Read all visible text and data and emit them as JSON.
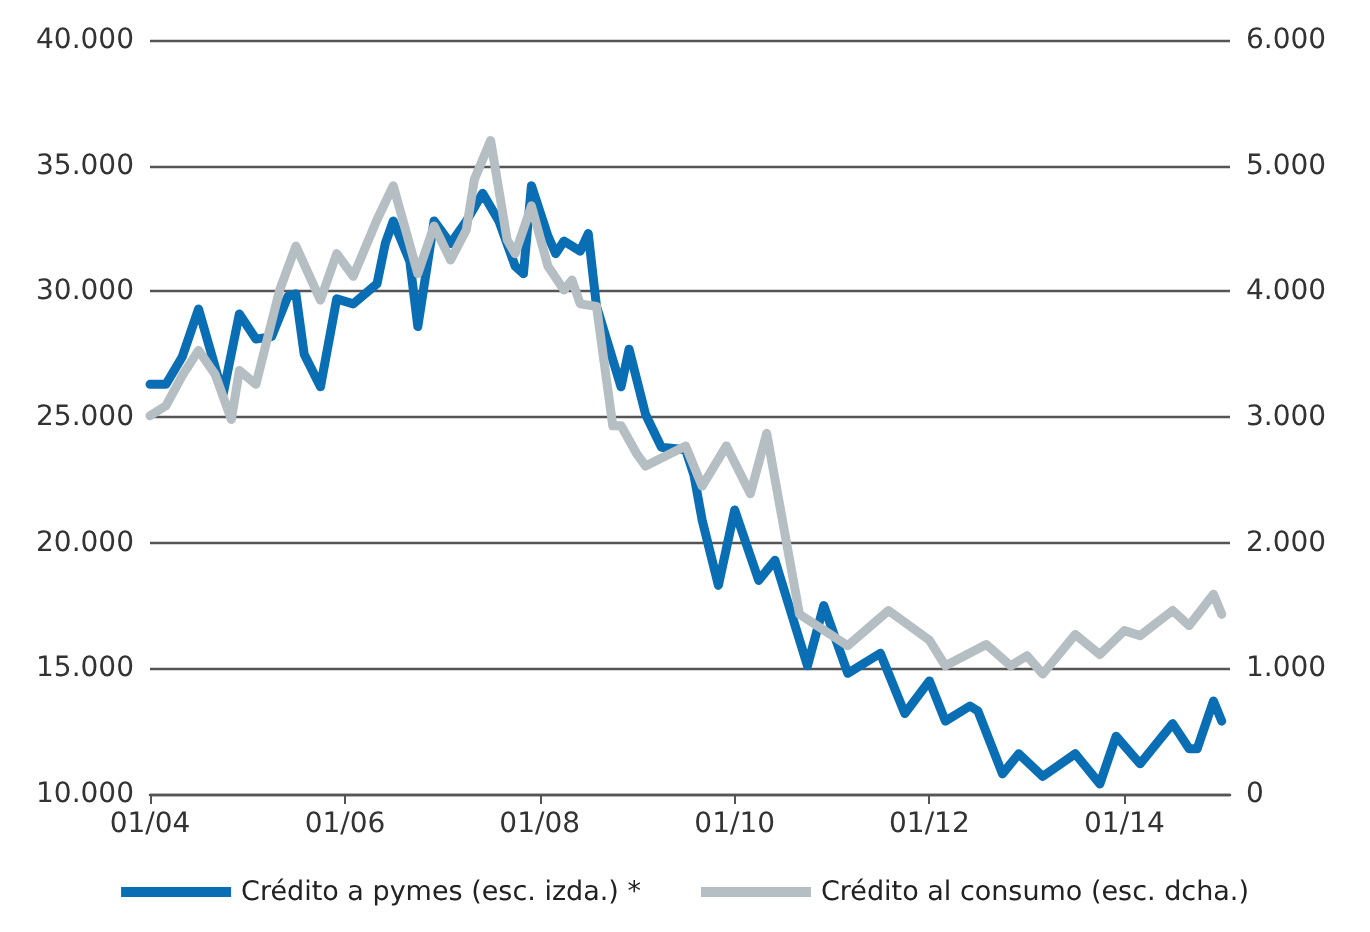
{
  "chart_data": {
    "type": "line",
    "xlim": [
      "2004-01",
      "2015-02"
    ],
    "xticks": [
      {
        "value": "2004-01",
        "label": "01/04"
      },
      {
        "value": "2006-01",
        "label": "01/06"
      },
      {
        "value": "2008-01",
        "label": "01/08"
      },
      {
        "value": "2010-01",
        "label": "01/10"
      },
      {
        "value": "2012-01",
        "label": "01/12"
      },
      {
        "value": "2014-01",
        "label": "01/14"
      }
    ],
    "ylim": [
      10000,
      40000
    ],
    "yticks": [
      {
        "value": 10000,
        "label": "10.000"
      },
      {
        "value": 15000,
        "label": "15.000"
      },
      {
        "value": 20000,
        "label": "20.000"
      },
      {
        "value": 25000,
        "label": "25.000"
      },
      {
        "value": 30000,
        "label": "30.000"
      },
      {
        "value": 35000,
        "label": "35.000"
      },
      {
        "value": 40000,
        "label": "40.000"
      }
    ],
    "y2lim": [
      0,
      6000
    ],
    "y2ticks": [
      0,
      {
        "value": 1000,
        "label": "1.000"
      },
      {
        "value": 2000,
        "label": "2.000"
      },
      {
        "value": 3000,
        "label": "3.000"
      },
      {
        "value": 4000,
        "label": "4.000"
      },
      {
        "value": 5000,
        "label": "5.000"
      },
      {
        "value": 6000,
        "label": "6.000"
      }
    ],
    "grid": "y",
    "legend": "bottom",
    "marker": "none",
    "line_style": "solid",
    "series": [
      {
        "name": "Crédito a pymes (esc. izda.) *",
        "color": "#0a6eb4",
        "x": [
          "2004-01",
          "2004-03",
          "2004-05",
          "2004-07",
          "2004-09",
          "2004-10",
          "2004-12",
          "2005-02",
          "2005-04",
          "2005-06",
          "2005-07",
          "2005-08",
          "2005-10",
          "2005-12",
          "2006-02",
          "2006-05",
          "2006-06",
          "2006-07",
          "2006-09",
          "2006-10",
          "2006-12",
          "2007-02",
          "2007-04",
          "2007-06",
          "2007-08",
          "2007-10",
          "2007-11",
          "2007-12",
          "2008-02",
          "2008-03",
          "2008-04",
          "2008-06",
          "2008-07",
          "2008-08",
          "2008-11",
          "2008-12",
          "2009-02",
          "2009-04",
          "2009-07",
          "2009-08",
          "2009-09",
          "2009-11",
          "2010-01",
          "2010-04",
          "2010-06",
          "2010-10",
          "2010-12",
          "2011-03",
          "2011-07",
          "2011-10",
          "2012-01",
          "2012-03",
          "2012-06",
          "2012-07",
          "2012-10",
          "2012-12",
          "2013-03",
          "2013-07",
          "2013-10",
          "2013-12",
          "2014-03",
          "2014-07",
          "2014-09",
          "2014-10",
          "2014-12",
          "2015-01"
        ],
        "values": [
          26300,
          26300,
          27400,
          29300,
          27000,
          25900,
          29100,
          28100,
          28200,
          29800,
          29900,
          27500,
          26200,
          29700,
          29500,
          30300,
          31900,
          32800,
          31200,
          28600,
          32800,
          31900,
          32800,
          33900,
          32800,
          31000,
          30700,
          34200,
          32200,
          31500,
          32000,
          31600,
          32300,
          29400,
          26200,
          27700,
          25100,
          23800,
          23700,
          22700,
          20900,
          18300,
          21300,
          18500,
          19300,
          15100,
          17500,
          14800,
          15600,
          13200,
          14500,
          12900,
          13500,
          13300,
          10800,
          11600,
          10700,
          11600,
          10400,
          12300,
          11200,
          12800,
          11800,
          11800,
          13700,
          12900
        ]
      },
      {
        "name": "Crédito al consumo (esc. dcha.)",
        "color": "#b4bec3",
        "axis": "y2",
        "x": [
          "2004-01",
          "2004-03",
          "2004-05",
          "2004-07",
          "2004-09",
          "2004-11",
          "2004-12",
          "2005-02",
          "2005-05",
          "2005-07",
          "2005-10",
          "2005-12",
          "2006-02",
          "2006-05",
          "2006-07",
          "2006-10",
          "2006-12",
          "2007-02",
          "2007-04",
          "2007-05",
          "2007-07",
          "2007-09",
          "2007-10",
          "2007-12",
          "2008-02",
          "2008-04",
          "2008-05",
          "2008-06",
          "2008-08",
          "2008-10",
          "2008-11",
          "2009-01",
          "2009-02",
          "2009-07",
          "2009-09",
          "2009-12",
          "2010-03",
          "2010-05",
          "2010-09",
          "2011-03",
          "2011-08",
          "2012-01",
          "2012-03",
          "2012-08",
          "2012-11",
          "2013-01",
          "2013-03",
          "2013-07",
          "2013-10",
          "2014-01",
          "2014-03",
          "2014-07",
          "2014-09",
          "2014-12",
          "2015-01"
        ],
        "values": [
          3010,
          3090,
          3330,
          3530,
          3340,
          2980,
          3370,
          3260,
          4010,
          4360,
          3930,
          4300,
          4120,
          4570,
          4840,
          4140,
          4520,
          4250,
          4490,
          4890,
          5200,
          4410,
          4300,
          4680,
          4200,
          4010,
          4090,
          3900,
          3880,
          2930,
          2930,
          2700,
          2610,
          2770,
          2450,
          2770,
          2390,
          2870,
          1430,
          1180,
          1460,
          1225,
          1020,
          1190,
          1020,
          1100,
          955,
          1270,
          1110,
          1300,
          1260,
          1460,
          1340,
          1590,
          1430
        ]
      }
    ]
  }
}
